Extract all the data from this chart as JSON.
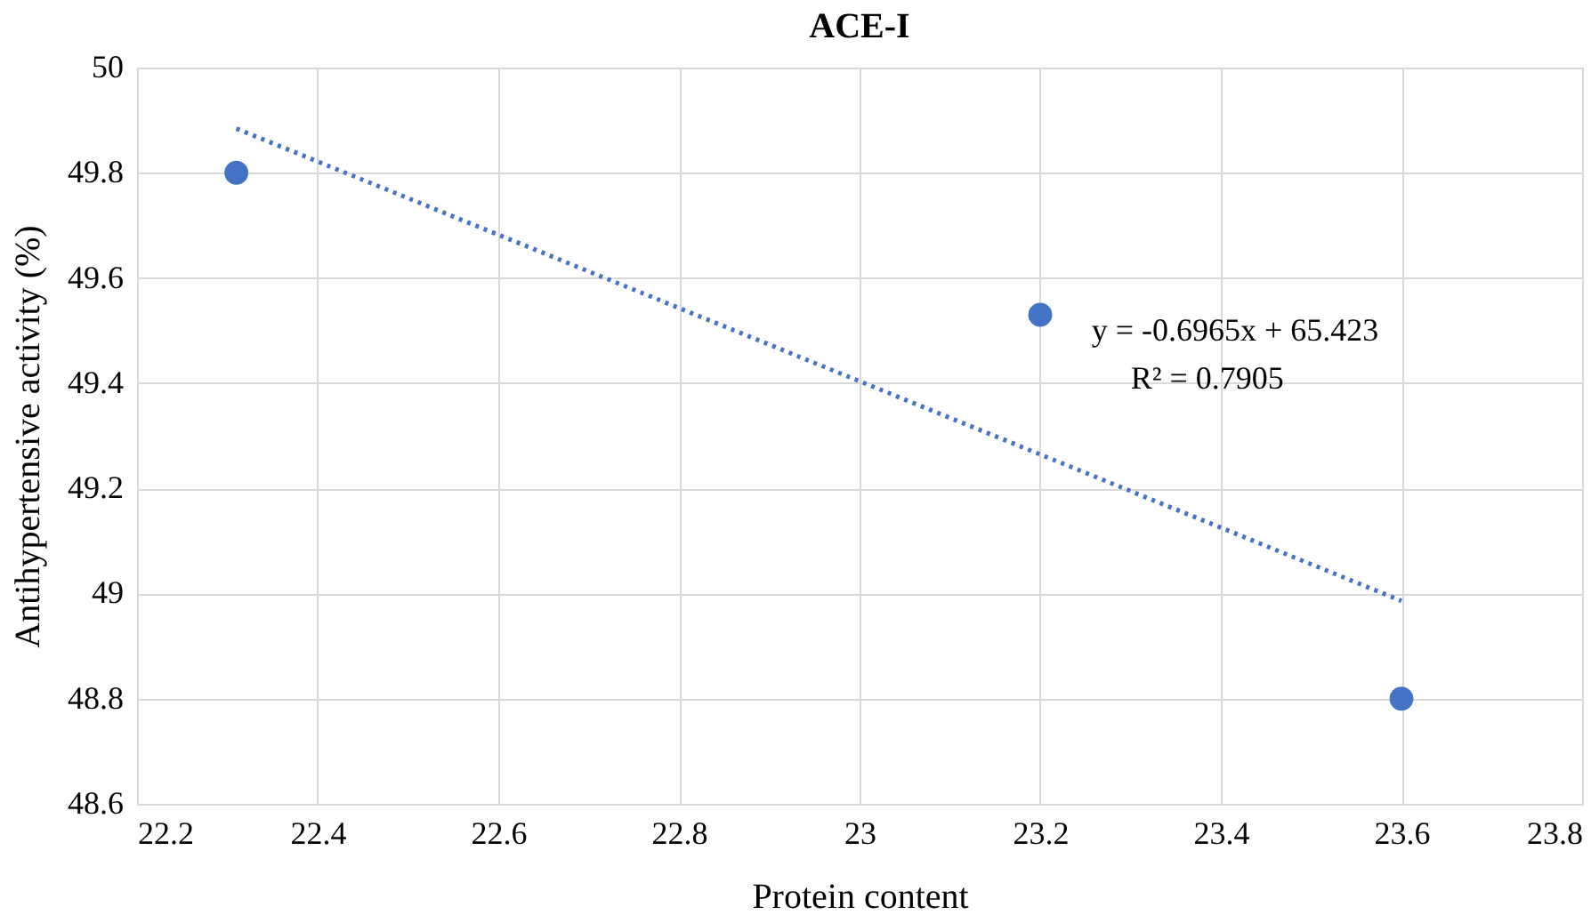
{
  "chart_data": {
    "type": "scatter",
    "title": "ACE-I",
    "xlabel": "Protein content",
    "ylabel": "Antihypertensive activity (%)",
    "series": [
      {
        "type": "scatter",
        "color": "#4472c4",
        "marker": "circle",
        "x": [
          22.31,
          23.2,
          23.6
        ],
        "values": [
          49.8,
          49.53,
          48.8
        ]
      },
      {
        "type": "line",
        "color": "#4472c4",
        "line_style": "dotted",
        "x": [
          22.31,
          23.6
        ],
        "values": [
          49.884,
          48.986
        ]
      }
    ],
    "annotations": [
      "y = -0.6965x + 65.423",
      "R² = 0.7905"
    ],
    "xlim": [
      22.2,
      23.8
    ],
    "xticks": [
      22.2,
      22.4,
      22.6,
      22.8,
      23,
      23.2,
      23.4,
      23.6,
      23.8
    ],
    "ylim": [
      48.6,
      50
    ],
    "yticks": [
      48.6,
      48.8,
      49,
      49.2,
      49.4,
      49.6,
      49.8,
      50
    ],
    "grid": true,
    "legend": false
  }
}
